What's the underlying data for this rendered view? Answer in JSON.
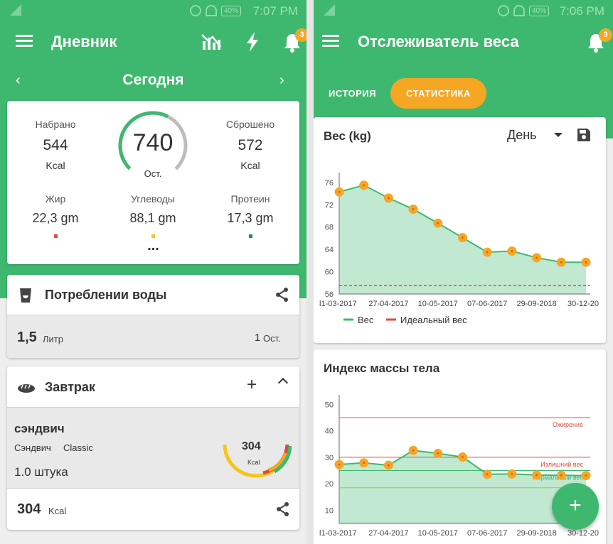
{
  "left": {
    "status": {
      "time": "7:07 PM",
      "battery": "40%"
    },
    "title": "Дневник",
    "notif_count": "3",
    "date_label": "Сегодня",
    "summary": {
      "gained_label": "Набрано",
      "gained_value": "544",
      "gained_unit": "Kcal",
      "remaining_value": "740",
      "remaining_label": "Ост.",
      "burned_label": "Сброшено",
      "burned_value": "572",
      "burned_unit": "Kcal",
      "ring_progress": 0.6,
      "macros": [
        {
          "label": "Жир",
          "value": "22,3 gm",
          "color": "#e04b3a"
        },
        {
          "label": "Углеводы",
          "value": "88,1 gm",
          "color": "#f5c518"
        },
        {
          "label": "Протеин",
          "value": "17,3 gm",
          "color": "#1e8e4e"
        }
      ],
      "more": "..."
    },
    "water": {
      "title": "Потреблении воды",
      "amount": "1,5",
      "amount_unit": "Литр",
      "remaining_num": "1",
      "remaining_label": "Ост."
    },
    "breakfast": {
      "title": "Завтрак",
      "item_name": "сэндвич",
      "item_desc": "Сэндвич",
      "item_variant": "Classic",
      "item_qty": "1.0  штука",
      "item_kcal": "304",
      "item_kcal_unit": "Kcal",
      "total": "304",
      "total_unit": "Kcal"
    }
  },
  "right": {
    "status": {
      "time": "7:06 PM",
      "battery": "40%"
    },
    "title": "Отслеживатель веса",
    "notif_count": "3",
    "tabs": [
      "ИСТОРИЯ",
      "СТАТИСТИКА"
    ],
    "weight_card": {
      "title": "Вес (kg)",
      "period": "День"
    },
    "bmi_card": {
      "title": "Индекс массы тела"
    },
    "fab": "+"
  },
  "chart_data": [
    {
      "type": "area",
      "title": "Вес (kg)",
      "x": [
        "11-03-2017",
        "",
        "27-04-2017",
        "",
        "10-05-2017",
        "",
        "07-06-2017",
        "",
        "29-09-2018",
        "",
        "30-12-20"
      ],
      "x_tick_labels": [
        "l1-03-2017",
        "27-04-2017",
        "10-05-2017",
        "07-06-2017",
        "29-09-2018",
        "30-12-20"
      ],
      "series": [
        {
          "name": "Вес",
          "values": [
            74.3,
            75.5,
            73.2,
            71.2,
            68.7,
            66.1,
            63.5,
            63.7,
            62.5,
            61.7,
            61.7
          ],
          "color": "#3fb86f"
        },
        {
          "name": "Идеальный вес",
          "values": [
            57.5,
            57.5,
            57.5,
            57.5,
            57.5,
            57.5,
            57.5,
            57.5,
            57.5,
            57.5,
            57.5
          ],
          "color": "#e04b3a"
        }
      ],
      "yticks": [
        56,
        60,
        64,
        68,
        72,
        76
      ],
      "ylim": [
        56,
        77
      ],
      "legend": "bottom"
    },
    {
      "type": "area",
      "title": "Индекс массы тела",
      "x": [
        "11-03-2017",
        "",
        "27-04-2017",
        "",
        "10-05-2017",
        "",
        "07-06-2017",
        "",
        "29-09-2018",
        "",
        "30-12-20"
      ],
      "x_tick_labels": [
        "l1-03-2017",
        "27-04-2017",
        "10-05-2017",
        "07-06-2017",
        "29-09-2018",
        "30-12-20"
      ],
      "series": [
        {
          "name": "ИМТ",
          "values": [
            27.3,
            27.9,
            27.0,
            32.6,
            31.5,
            30.1,
            23.6,
            23.7,
            23.3,
            23.2,
            23.1
          ],
          "color": "#3fb86f"
        }
      ],
      "thresholds": [
        {
          "label": "Ожирение",
          "value": 45,
          "color": "#e04b3a"
        },
        {
          "label": "Излишний вес",
          "value": 30,
          "color": "#e04b3a"
        },
        {
          "label": "Нормальный вес",
          "value": 25,
          "color": "#3fb86f"
        },
        {
          "label": "Недо",
          "value": 18.5,
          "color": "#f5c518"
        }
      ],
      "yticks": [
        10,
        20,
        30,
        40,
        50
      ],
      "ylim": [
        5,
        52
      ]
    }
  ]
}
